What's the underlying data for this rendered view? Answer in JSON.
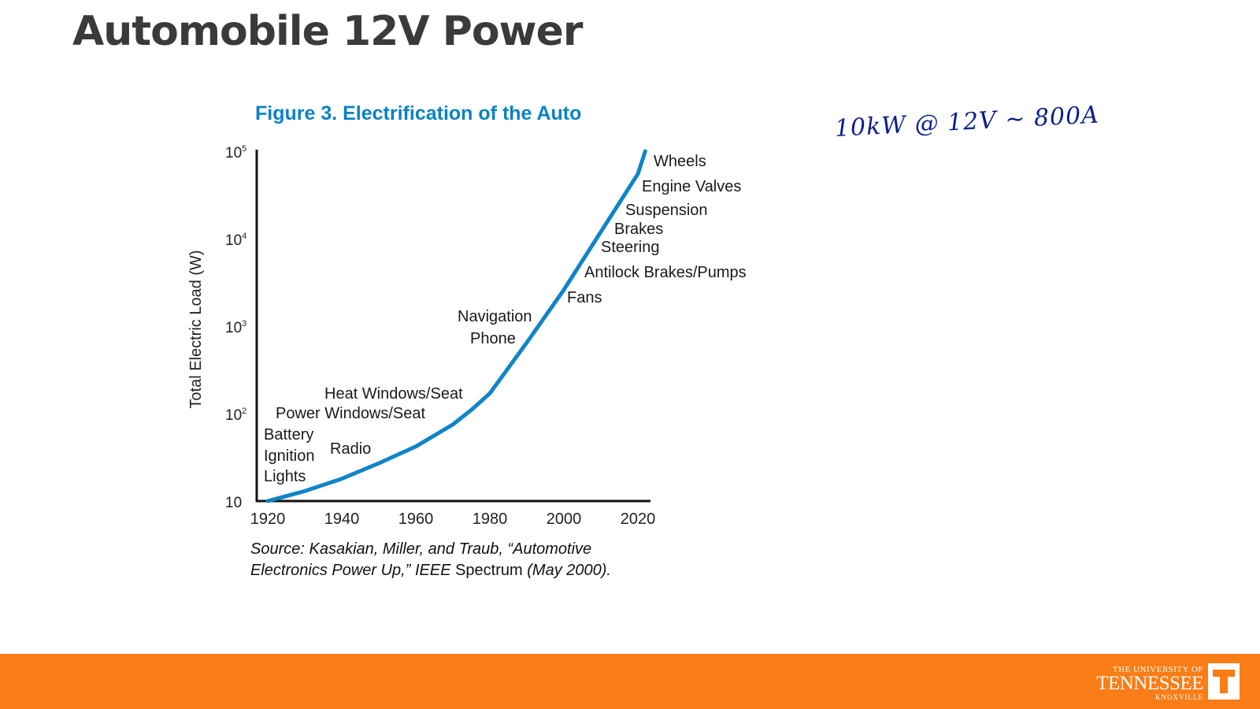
{
  "slide": {
    "title": "Automobile 12V Power"
  },
  "annotation": {
    "handwritten_note": "10kW @ 12V ~ 800A"
  },
  "figure": {
    "title": "Figure 3. Electrification of the Auto",
    "source_part1": "Source: Kasakian, Miller, and Traub, “Automotive",
    "source_part2": "Electronics Power Up,” IEEE",
    "source_part3": "Spectrum",
    "source_part4": "(May 2000)."
  },
  "chart_data": {
    "type": "line",
    "title": "Figure 3. Electrification of the Auto",
    "xlabel": "",
    "ylabel": "Total Electric Load (W)",
    "y_scale": "log",
    "xlim": [
      1920,
      2023
    ],
    "ylim": [
      10,
      100000
    ],
    "x_ticks": [
      "1920",
      "1940",
      "1960",
      "1980",
      "2000",
      "2020"
    ],
    "y_ticks": [
      {
        "base": "10",
        "exp": "5"
      },
      {
        "base": "10",
        "exp": "4"
      },
      {
        "base": "10",
        "exp": "3"
      },
      {
        "base": "10",
        "exp": "2"
      },
      {
        "base": "10",
        "exp": ""
      }
    ],
    "grid": false,
    "series": [
      {
        "color": "#1184c8",
        "x": [
          1920,
          1930,
          1940,
          1950,
          1960,
          1970,
          1975,
          1980,
          1990,
          2000,
          2010,
          2020,
          2022
        ],
        "y": [
          10,
          13,
          18,
          27,
          42,
          75,
          110,
          170,
          650,
          2600,
          12000,
          55000,
          100000
        ]
      }
    ],
    "annotations": [
      {
        "text": "Battery"
      },
      {
        "text": "Ignition"
      },
      {
        "text": "Lights"
      },
      {
        "text": "Radio"
      },
      {
        "text": "Power Windows/Seat"
      },
      {
        "text": "Heat Windows/Seat"
      },
      {
        "text": "Navigation"
      },
      {
        "text": "Phone"
      },
      {
        "text": "Fans"
      },
      {
        "text": "Antilock Brakes/Pumps"
      },
      {
        "text": "Steering"
      },
      {
        "text": "Brakes"
      },
      {
        "text": "Suspension"
      },
      {
        "text": "Engine Valves"
      },
      {
        "text": "Wheels"
      }
    ]
  },
  "footer": {
    "logo_line1": "THE UNIVERSITY OF",
    "logo_line2": "TENNESSEE",
    "logo_line3": "KNOXVILLE",
    "logo_mark": "T",
    "color": "#fa7d17"
  }
}
